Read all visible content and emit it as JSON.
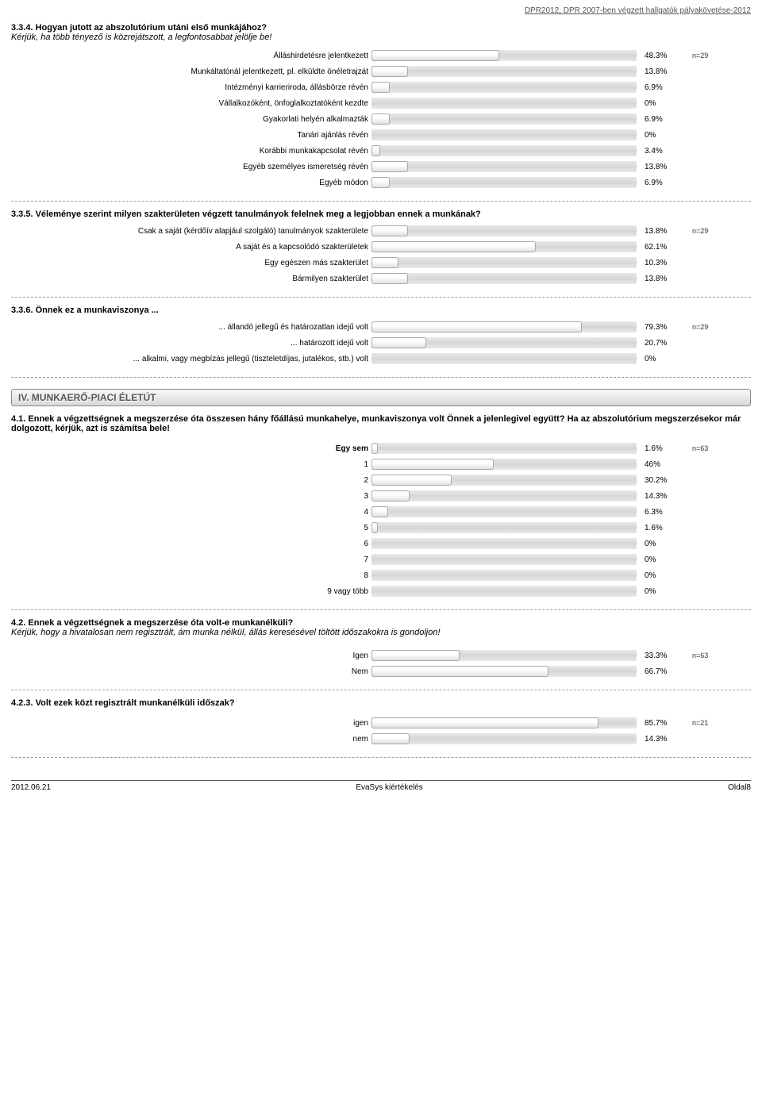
{
  "header": "DPR2012, DPR 2007-ben végzett hallgatók pályakövetése-2012",
  "chart_visual": {
    "track_width": 334,
    "track_bg": "linear-gradient(#e8e8e8,#d6d6d6,#e8e8e8)",
    "fill_bg": "linear-gradient(#fefefe,#fff,#e0e0e0)",
    "fill_border": "#aaa",
    "scale_max_pct": 100
  },
  "q334": {
    "title": "3.3.4. Hogyan jutott az abszolutórium utáni első munkájához?",
    "subtitle": "Kérjük, ha több tényező is közrejátszott, a legfontosabbat jelölje be!",
    "n": "n=29",
    "rows": [
      {
        "label": "Álláshirdetésre jelentkezett",
        "pct": 48.3,
        "text": "48.3%"
      },
      {
        "label": "Munkáltatónál jelentkezett, pl. elküldte önéletrajzát",
        "pct": 13.8,
        "text": "13.8%"
      },
      {
        "label": "Intézményi karrieriroda, állásbörze révén",
        "pct": 6.9,
        "text": "6.9%"
      },
      {
        "label": "Vállalkozóként, önfoglalkoztatóként kezdte",
        "pct": 0,
        "text": "0%"
      },
      {
        "label": "Gyakorlati helyén alkalmazták",
        "pct": 6.9,
        "text": "6.9%"
      },
      {
        "label": "Tanári ajánlás révén",
        "pct": 0,
        "text": "0%"
      },
      {
        "label": "Korábbi munkakapcsolat révén",
        "pct": 3.4,
        "text": "3.4%"
      },
      {
        "label": "Egyéb személyes ismeretség révén",
        "pct": 13.8,
        "text": "13.8%"
      },
      {
        "label": "Egyéb módon",
        "pct": 6.9,
        "text": "6.9%"
      }
    ]
  },
  "q335": {
    "title": "3.3.5. Véleménye szerint milyen szakterületen végzett tanulmányok felelnek meg a legjobban ennek a munkának?",
    "n": "n=29",
    "rows": [
      {
        "label": "Csak a saját (kérdőív alapjául szolgáló) tanulmányok szakterülete",
        "pct": 13.8,
        "text": "13.8%"
      },
      {
        "label": "A saját és a kapcsolódó szakterületek",
        "pct": 62.1,
        "text": "62.1%"
      },
      {
        "label": "Egy egészen más szakterület",
        "pct": 10.3,
        "text": "10.3%"
      },
      {
        "label": "Bármilyen szakterület",
        "pct": 13.8,
        "text": "13.8%"
      }
    ]
  },
  "q336": {
    "title": "3.3.6. Önnek ez a munkaviszonya ...",
    "n": "n=29",
    "rows": [
      {
        "label": "... állandó jellegű és határozatlan idejű volt",
        "pct": 79.3,
        "text": "79.3%"
      },
      {
        "label": "... határozott idejű volt",
        "pct": 20.7,
        "text": "20.7%"
      },
      {
        "label": "... alkalmi, vagy megbízás jellegű (tiszteletdíjas, jutalékos, stb.) volt",
        "pct": 0,
        "text": "0%"
      }
    ]
  },
  "section4": "IV. MUNKAERŐ-PIACI ÉLETÚT",
  "q41": {
    "title": "4.1. Ennek a végzettségnek a megszerzése óta összesen hány főállású munkahelye, munkaviszonya volt Önnek a jelenlegivel együtt? Ha az abszolutórium megszerzésekor már dolgozott, kérjük, azt is számítsa bele!",
    "n": "n=63",
    "rows": [
      {
        "label": "Egy sem",
        "pct": 1.6,
        "text": "1.6%",
        "bold": true
      },
      {
        "label": "1",
        "pct": 46,
        "text": "46%"
      },
      {
        "label": "2",
        "pct": 30.2,
        "text": "30.2%"
      },
      {
        "label": "3",
        "pct": 14.3,
        "text": "14.3%"
      },
      {
        "label": "4",
        "pct": 6.3,
        "text": "6.3%"
      },
      {
        "label": "5",
        "pct": 1.6,
        "text": "1.6%"
      },
      {
        "label": "6",
        "pct": 0,
        "text": "0%"
      },
      {
        "label": "7",
        "pct": 0,
        "text": "0%"
      },
      {
        "label": "8",
        "pct": 0,
        "text": "0%"
      },
      {
        "label": "9 vagy több",
        "pct": 0,
        "text": "0%"
      }
    ]
  },
  "q42": {
    "title": "4.2. Ennek a végzettségnek a megszerzése óta volt-e munkanélküli?",
    "subtitle": "Kérjük, hogy a hivatalosan nem regisztrált, ám munka nélkül, állás keresésével töltött időszakokra is gondoljon!",
    "n": "n=63",
    "rows": [
      {
        "label": "Igen",
        "pct": 33.3,
        "text": "33.3%"
      },
      {
        "label": "Nem",
        "pct": 66.7,
        "text": "66.7%"
      }
    ]
  },
  "q423": {
    "title": "4.2.3. Volt ezek közt regisztrált munkanélküli időszak?",
    "n": "n=21",
    "rows": [
      {
        "label": "igen",
        "pct": 85.7,
        "text": "85.7%"
      },
      {
        "label": "nem",
        "pct": 14.3,
        "text": "14.3%"
      }
    ]
  },
  "footer": {
    "left": "2012.06.21",
    "center": "EvaSys kiértékelés",
    "right": "Oldal8"
  }
}
